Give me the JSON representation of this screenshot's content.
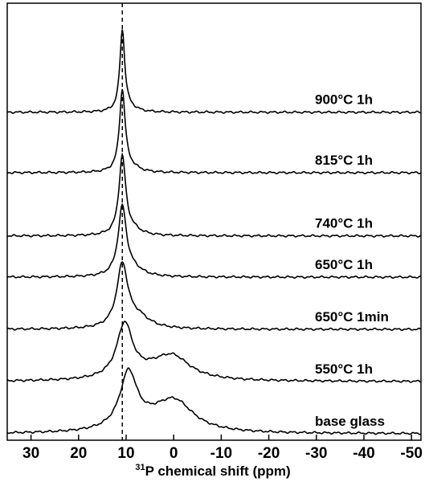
{
  "chart_data": {
    "type": "line",
    "title": "",
    "xlabel_sup": "31",
    "xlabel": "P chemical shift (ppm)",
    "ylabel": "",
    "x_reversed": true,
    "xlim": [
      35,
      -52
    ],
    "ylim": [
      0,
      7.6
    ],
    "xticks": [
      30,
      20,
      10,
      0,
      -10,
      -20,
      -30,
      -40,
      -50
    ],
    "xtick_labels": [
      "30",
      "20",
      "10",
      "0",
      "-10",
      "-20",
      "-30",
      "-40",
      "-50"
    ],
    "reference_line": {
      "x": 10.8,
      "style": "dashed"
    },
    "grid": false,
    "legend": "none",
    "series": [
      {
        "label": "base glass",
        "baseline": 0.0,
        "peaks": [
          {
            "center": 9.5,
            "height": 1.02,
            "width": 2.2
          },
          {
            "center": -0.5,
            "height": 0.42,
            "width": 4.5
          },
          {
            "center": 2.5,
            "height": 0.22,
            "width": 6.0
          }
        ]
      },
      {
        "label": "550°C 1h",
        "baseline": 0.95,
        "peaks": [
          {
            "center": 10.3,
            "height": 0.98,
            "width": 2.0
          },
          {
            "center": 0.0,
            "height": 0.32,
            "width": 4.2
          },
          {
            "center": 3.0,
            "height": 0.18,
            "width": 6.0
          }
        ]
      },
      {
        "label": "650°C 1min",
        "baseline": 1.9,
        "peaks": [
          {
            "center": 10.8,
            "height": 1.14,
            "width": 1.4
          },
          {
            "center": 7.5,
            "height": 0.2,
            "width": 3.0
          }
        ]
      },
      {
        "label": "650°C 1h",
        "baseline": 2.85,
        "peaks": [
          {
            "center": 10.8,
            "height": 1.25,
            "width": 1.05
          },
          {
            "center": 8.5,
            "height": 0.12,
            "width": 2.5
          }
        ]
      },
      {
        "label": "740°C 1h",
        "baseline": 3.6,
        "peaks": [
          {
            "center": 10.8,
            "height": 1.42,
            "width": 0.85
          },
          {
            "center": 8.8,
            "height": 0.1,
            "width": 2.2
          }
        ]
      },
      {
        "label": "815°C 1h",
        "baseline": 4.75,
        "peaks": [
          {
            "center": 10.8,
            "height": 1.48,
            "width": 0.72
          },
          {
            "center": 9.0,
            "height": 0.08,
            "width": 2.0
          }
        ]
      },
      {
        "label": "900°C 1h",
        "baseline": 5.85,
        "peaks": [
          {
            "center": 10.8,
            "height": 1.48,
            "width": 0.62
          },
          {
            "center": 9.2,
            "height": 0.06,
            "width": 1.8
          }
        ]
      }
    ]
  }
}
